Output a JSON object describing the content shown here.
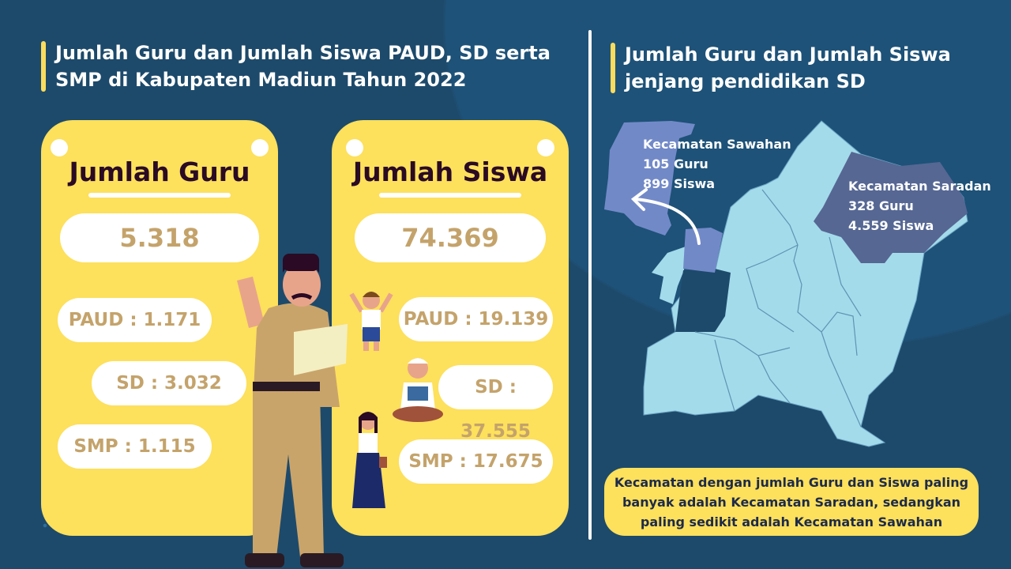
{
  "left_title": "Jumlah Guru dan Jumlah Siswa PAUD, SD serta SMP di Kabupaten Madiun Tahun 2022",
  "guru": {
    "heading": "Jumlah Guru",
    "total": "5.318",
    "paud": "PAUD : 1.171",
    "sd": "SD : 3.032",
    "smp": "SMP : 1.115"
  },
  "siswa": {
    "heading": "Jumlah Siswa",
    "total": "74.369",
    "paud": "PAUD : 19.139",
    "sd": "SD : 37.555",
    "smp": "SMP : 17.675"
  },
  "right_title": "Jumlah Guru dan Jumlah Siswa jenjang pendidikan SD",
  "map": {
    "sawahan": {
      "name": "Kecamatan Sawahan",
      "guru": "105 Guru",
      "siswa": "899 Siswa"
    },
    "saradan": {
      "name": "Kecamatan Saradan",
      "guru": "328 Guru",
      "siswa": "4.559 Siswa"
    }
  },
  "note": "Kecamatan dengan jumlah Guru dan Siswa paling banyak adalah Kecamatan Saradan, sedangkan paling sedikit adalah Kecamatan Sawahan",
  "colors": {
    "background": "#1d4a6b",
    "card": "#fde05c",
    "number": "#c4a36b",
    "map_base": "#a4dbeb",
    "map_sawahan": "#7289c8",
    "map_saradan": "#566793"
  }
}
